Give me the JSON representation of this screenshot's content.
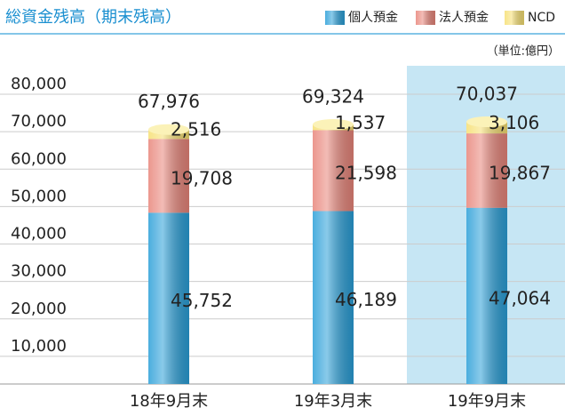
{
  "chart_data": {
    "type": "stacked_bar",
    "title": "総資金残高（期末残高）",
    "unit_label": "（単位:億円）",
    "categories": [
      "18年9月末",
      "19年3月末",
      "19年9月末"
    ],
    "series": [
      {
        "name": "個人預金",
        "color": "#2a9fd8",
        "values": [
          45752,
          46189,
          47064
        ],
        "value_labels": [
          "45,752",
          "46,189",
          "47,064"
        ]
      },
      {
        "name": "法人預金",
        "color": "#e8857a",
        "values": [
          19708,
          21598,
          19867
        ],
        "value_labels": [
          "19,708",
          "21,598",
          "19,867"
        ]
      },
      {
        "name": "NCD",
        "color": "#f6df72",
        "values": [
          2516,
          1537,
          3106
        ],
        "value_labels": [
          "2,516",
          "1,537",
          "3,106"
        ]
      }
    ],
    "totals": [
      67976,
      69324,
      70037
    ],
    "total_labels": [
      "67,976",
      "69,324",
      "70,037"
    ],
    "ylim": [
      0,
      85000
    ],
    "yticks": [
      {
        "value": 10000,
        "label": "10,000"
      },
      {
        "value": 20000,
        "label": "20,000"
      },
      {
        "value": 30000,
        "label": "30,000"
      },
      {
        "value": 40000,
        "label": "40,000"
      },
      {
        "value": 50000,
        "label": "50,000"
      },
      {
        "value": 60000,
        "label": "60,000"
      },
      {
        "value": 70000,
        "label": "70,000"
      },
      {
        "value": 80000,
        "label": "80,000"
      }
    ],
    "grid": true,
    "legend": "top-right"
  }
}
